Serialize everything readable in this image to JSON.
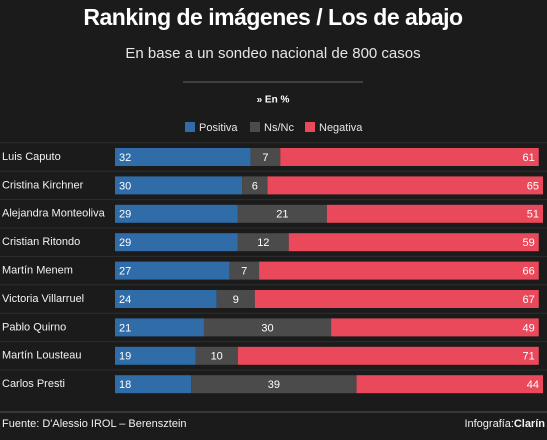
{
  "chart_data": {
    "type": "bar",
    "orientation": "horizontal",
    "stacked": true,
    "title": "Ranking de imágenes / Los de abajo",
    "subtitle": "En base a un sondeo nacional de 800 casos",
    "note": "» En %",
    "categories": [
      "Luis Caputo",
      "Cristina Kirchner",
      "Alejandra Monteoliva",
      "Cristian Ritondo",
      "Martín Menem",
      "Victoria Villarruel",
      "Pablo Quirno",
      "Martín Lousteau",
      "Carlos Presti"
    ],
    "series": [
      {
        "name": "Positiva",
        "color": "#2f6ca8",
        "values": [
          32,
          30,
          29,
          29,
          27,
          24,
          21,
          19,
          18
        ]
      },
      {
        "name": "Ns/Nc",
        "color": "#4b4b4b",
        "values": [
          7,
          6,
          21,
          12,
          7,
          9,
          30,
          10,
          39
        ]
      },
      {
        "name": "Negativa",
        "color": "#e9495b",
        "values": [
          61,
          65,
          51,
          59,
          66,
          67,
          49,
          71,
          44
        ]
      }
    ],
    "source": "Fuente: D'Alessio IROL – Berensztein",
    "credit": "Infografía:",
    "brand": "Clarín"
  }
}
